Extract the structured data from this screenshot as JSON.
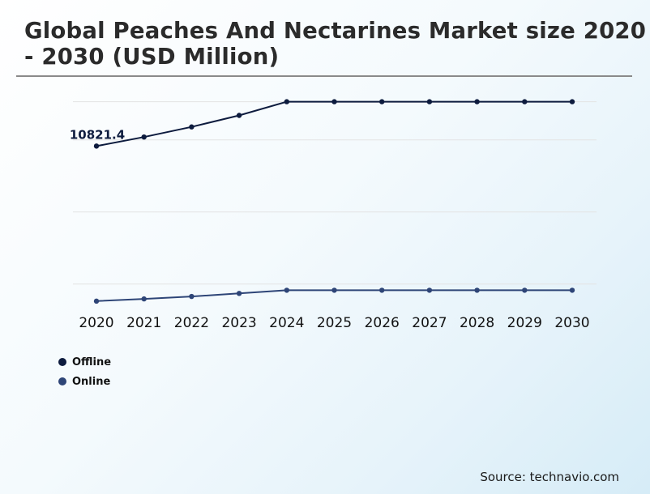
{
  "header": {
    "title": "Global Peaches And Nectarines Market size 2020 - 2030 (USD Million)"
  },
  "footer": {
    "source": "Source: technavio.com"
  },
  "colors": {
    "offline": "#0d1b3e",
    "online": "#2e4577",
    "grid": "#e3e3e3"
  },
  "chart_data": {
    "type": "line",
    "title": "Global Peaches And Nectarines Market size 2020 - 2030 (USD Million)",
    "xlabel": "",
    "ylabel": "",
    "x": [
      "2020",
      "2021",
      "2022",
      "2023",
      "2024",
      "2025",
      "2026",
      "2027",
      "2028",
      "2029",
      "2030"
    ],
    "ylim": [
      0,
      15000
    ],
    "grid": true,
    "legend_position": "bottom-left",
    "series": [
      {
        "name": "Offline",
        "color": "#0d1b3e",
        "values": [
          10821.4,
          11450,
          12150,
          12950,
          13900,
          13900,
          13900,
          13900,
          13900,
          13900,
          13900
        ]
      },
      {
        "name": "Online",
        "color": "#2e4577",
        "values": [
          65,
          220,
          390,
          600,
          820,
          820,
          820,
          820,
          820,
          820,
          820
        ]
      }
    ],
    "annotations": [
      {
        "series": "Offline",
        "x": "2020",
        "text": "10821.4"
      }
    ]
  }
}
